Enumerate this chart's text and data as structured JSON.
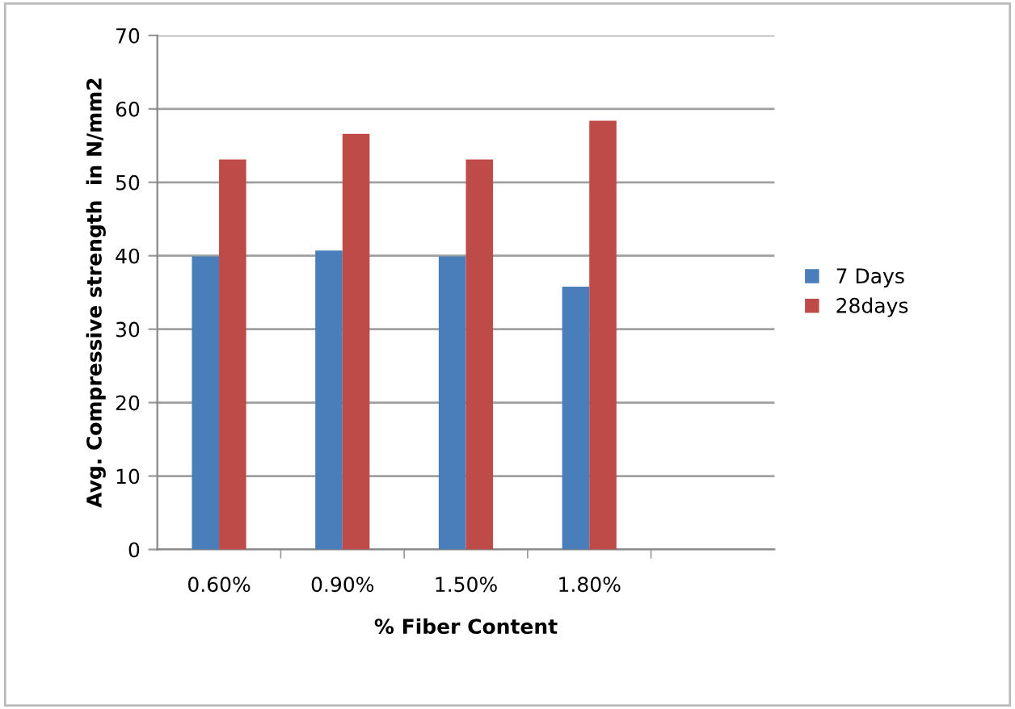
{
  "chart_data": {
    "type": "bar",
    "xlabel": "% Fiber Content",
    "ylabel": "Avg. Compressive strength  in N/mm2",
    "categories": [
      "0.60%",
      "0.90%",
      "1.50%",
      "1.80%",
      null
    ],
    "series": [
      {
        "name": "7 Days",
        "color": "#4a7ebb",
        "values": [
          39.9,
          40.7,
          39.9,
          35.8,
          null
        ]
      },
      {
        "name": "28days",
        "color": "#be4b48",
        "values": [
          53.1,
          56.6,
          53.1,
          58.4,
          null
        ]
      }
    ],
    "ylim": [
      0,
      70
    ],
    "yticks": [
      0,
      10,
      20,
      30,
      40,
      50,
      60,
      70
    ],
    "grid": "y",
    "legend": "right"
  }
}
